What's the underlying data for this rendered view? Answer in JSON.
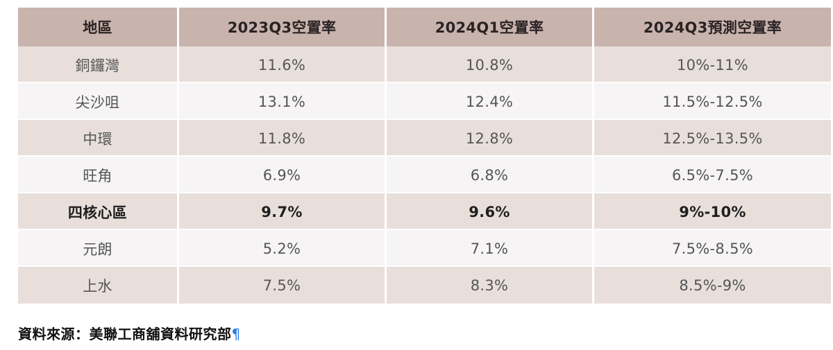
{
  "table": {
    "headers": [
      "地區",
      "2023Q3空置率",
      "2024Q1空置率",
      "2024Q3預測空置率"
    ],
    "rows": [
      [
        "銅鑼灣",
        "11.6%",
        "10.8%",
        "10%-11%"
      ],
      [
        "尖沙咀",
        "13.1%",
        "12.4%",
        "11.5%-12.5%"
      ],
      [
        "中環",
        "11.8%",
        "12.8%",
        "12.5%-13.5%"
      ],
      [
        "旺角",
        "6.9%",
        "6.8%",
        "6.5%-7.5%"
      ],
      [
        "四核心區",
        "9.7%",
        "9.6%",
        "9%-10%"
      ],
      [
        "元朗",
        "5.2%",
        "7.1%",
        "7.5%-8.5%"
      ],
      [
        "上水",
        "7.5%",
        "8.3%",
        "8.5%-9%"
      ]
    ]
  },
  "source": {
    "text": "資料來源：美聯工商舖資料研究部",
    "mark": "¶"
  },
  "colors": {
    "header_bg": "#c9b3ad",
    "row_even_bg": "#e8dfdb",
    "row_odd_bg": "#f6f4f4",
    "pilcrow": "#2b7de9"
  }
}
